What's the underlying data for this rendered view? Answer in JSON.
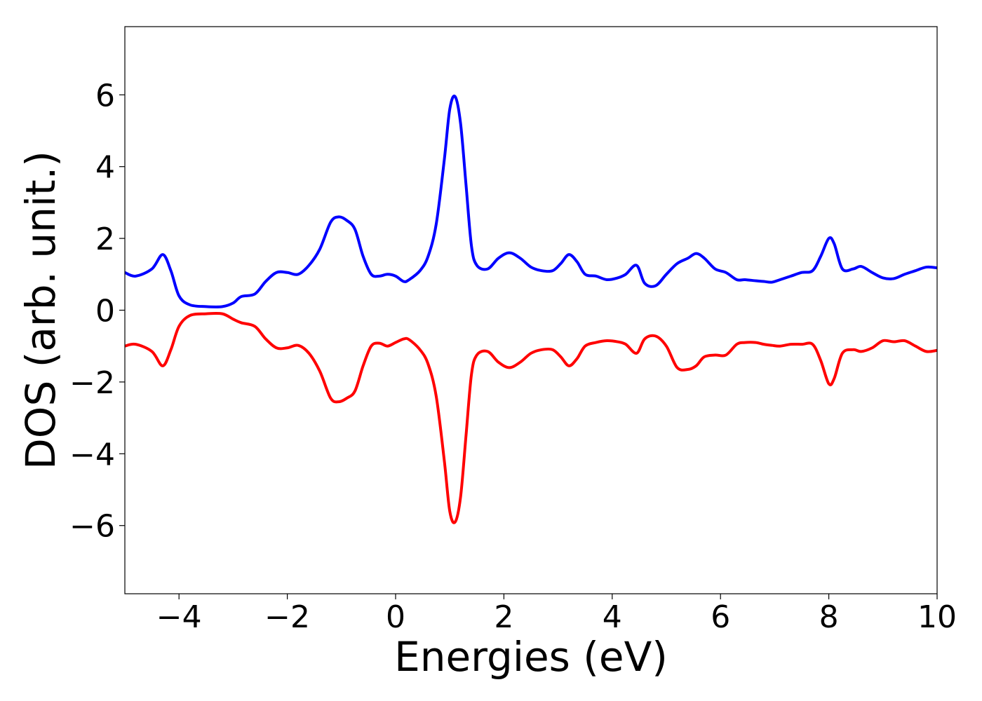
{
  "chart_data": {
    "type": "line",
    "xlabel": "Energies (eV)",
    "ylabel": "DOS (arb. unit.)",
    "xlim": [
      -5,
      10
    ],
    "ylim": [
      -7.9,
      7.9
    ],
    "xticks": [
      -4,
      -2,
      0,
      2,
      4,
      6,
      8,
      10
    ],
    "xtick_labels": [
      "−4",
      "−2",
      "0",
      "2",
      "4",
      "6",
      "8",
      "10"
    ],
    "yticks": [
      -6,
      -4,
      -2,
      0,
      2,
      4,
      6
    ],
    "ytick_labels": [
      "−6",
      "−4",
      "−2",
      "0",
      "2",
      "4",
      "6"
    ],
    "grid": false,
    "series": [
      {
        "color": "#0000ff",
        "x": [
          -5.0,
          -4.8,
          -4.5,
          -4.3,
          -4.15,
          -4.0,
          -3.8,
          -3.5,
          -3.2,
          -3.0,
          -2.85,
          -2.6,
          -2.4,
          -2.2,
          -2.0,
          -1.8,
          -1.6,
          -1.4,
          -1.2,
          -1.05,
          -0.9,
          -0.75,
          -0.6,
          -0.45,
          -0.3,
          -0.15,
          0.0,
          0.15,
          0.25,
          0.45,
          0.6,
          0.75,
          0.9,
          1.0,
          1.1,
          1.2,
          1.3,
          1.4,
          1.5,
          1.7,
          1.9,
          2.1,
          2.3,
          2.5,
          2.7,
          2.9,
          3.05,
          3.2,
          3.35,
          3.5,
          3.7,
          3.9,
          4.1,
          4.25,
          4.45,
          4.6,
          4.8,
          5.0,
          5.2,
          5.4,
          5.55,
          5.7,
          5.9,
          6.1,
          6.3,
          6.45,
          6.65,
          6.8,
          6.95,
          7.1,
          7.3,
          7.5,
          7.7,
          7.85,
          8.0,
          8.1,
          8.25,
          8.45,
          8.6,
          8.8,
          9.0,
          9.2,
          9.4,
          9.6,
          9.8,
          10.0
        ],
        "values": [
          1.05,
          0.95,
          1.15,
          1.55,
          1.1,
          0.4,
          0.15,
          0.1,
          0.1,
          0.2,
          0.38,
          0.45,
          0.8,
          1.05,
          1.05,
          1.0,
          1.25,
          1.7,
          2.45,
          2.6,
          2.5,
          2.25,
          1.5,
          1.0,
          0.95,
          1.0,
          0.95,
          0.8,
          0.85,
          1.1,
          1.5,
          2.4,
          4.2,
          5.6,
          5.95,
          5.2,
          3.5,
          1.8,
          1.25,
          1.15,
          1.45,
          1.6,
          1.45,
          1.2,
          1.1,
          1.1,
          1.3,
          1.55,
          1.35,
          1.0,
          0.95,
          0.85,
          0.9,
          1.0,
          1.25,
          0.75,
          0.68,
          1.0,
          1.3,
          1.45,
          1.58,
          1.45,
          1.15,
          1.05,
          0.85,
          0.85,
          0.82,
          0.8,
          0.78,
          0.85,
          0.95,
          1.05,
          1.1,
          1.5,
          2.0,
          1.85,
          1.15,
          1.15,
          1.22,
          1.05,
          0.9,
          0.88,
          1.0,
          1.1,
          1.2,
          1.18
        ]
      },
      {
        "color": "#ff0000",
        "x": [
          -5.0,
          -4.8,
          -4.5,
          -4.3,
          -4.15,
          -4.0,
          -3.8,
          -3.5,
          -3.2,
          -3.0,
          -2.85,
          -2.6,
          -2.4,
          -2.2,
          -2.0,
          -1.8,
          -1.6,
          -1.4,
          -1.2,
          -1.05,
          -0.9,
          -0.75,
          -0.6,
          -0.45,
          -0.3,
          -0.15,
          0.0,
          0.15,
          0.25,
          0.45,
          0.6,
          0.75,
          0.9,
          1.0,
          1.1,
          1.2,
          1.3,
          1.4,
          1.5,
          1.7,
          1.9,
          2.1,
          2.3,
          2.5,
          2.7,
          2.9,
          3.05,
          3.2,
          3.35,
          3.5,
          3.7,
          3.9,
          4.1,
          4.25,
          4.45,
          4.6,
          4.8,
          5.0,
          5.2,
          5.4,
          5.55,
          5.7,
          5.9,
          6.1,
          6.3,
          6.45,
          6.65,
          6.8,
          6.95,
          7.1,
          7.3,
          7.5,
          7.7,
          7.85,
          8.0,
          8.1,
          8.25,
          8.45,
          8.6,
          8.8,
          9.0,
          9.2,
          9.4,
          9.6,
          9.8,
          10.0
        ],
        "values": [
          -1.0,
          -0.95,
          -1.15,
          -1.55,
          -1.1,
          -0.45,
          -0.15,
          -0.1,
          -0.1,
          -0.25,
          -0.35,
          -0.45,
          -0.8,
          -1.05,
          -1.05,
          -0.98,
          -1.2,
          -1.7,
          -2.45,
          -2.55,
          -2.45,
          -2.25,
          -1.55,
          -1.0,
          -0.92,
          -1.0,
          -0.9,
          -0.8,
          -0.82,
          -1.1,
          -1.5,
          -2.4,
          -4.2,
          -5.6,
          -5.9,
          -5.2,
          -3.5,
          -1.8,
          -1.25,
          -1.15,
          -1.45,
          -1.6,
          -1.45,
          -1.2,
          -1.1,
          -1.1,
          -1.3,
          -1.55,
          -1.35,
          -1.0,
          -0.9,
          -0.85,
          -0.88,
          -0.95,
          -1.2,
          -0.8,
          -0.72,
          -1.0,
          -1.6,
          -1.65,
          -1.55,
          -1.3,
          -1.25,
          -1.25,
          -0.95,
          -0.9,
          -0.9,
          -0.95,
          -0.98,
          -1.0,
          -0.95,
          -0.95,
          -0.95,
          -1.4,
          -2.05,
          -1.9,
          -1.2,
          -1.1,
          -1.15,
          -1.05,
          -0.85,
          -0.88,
          -0.85,
          -1.0,
          -1.15,
          -1.12
        ]
      }
    ]
  }
}
